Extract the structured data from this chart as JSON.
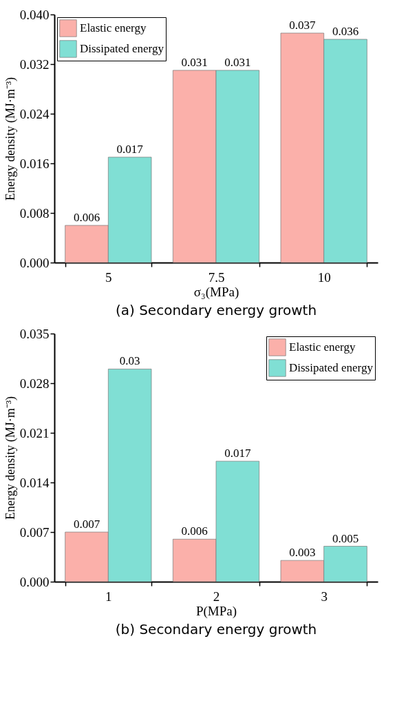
{
  "chart_data": [
    {
      "type": "bar",
      "title": "(a) Secondary energy growth",
      "xlabel": "σ₃(MPa)",
      "ylabel": "Energy density (MJ·m⁻³)",
      "categories": [
        "5",
        "7.5",
        "10"
      ],
      "series": [
        {
          "name": "Elastic energy",
          "color": "#fbb0aa",
          "values": [
            0.006,
            0.031,
            0.037
          ]
        },
        {
          "name": "Dissipated energy",
          "color": "#80dfd4",
          "values": [
            0.017,
            0.031,
            0.036
          ]
        }
      ],
      "ylim": [
        0,
        0.04
      ],
      "yticks": [
        {
          "value": 0,
          "label": "0.000"
        },
        {
          "value": 0.008,
          "label": "0.008"
        },
        {
          "value": 0.016,
          "label": "0.016"
        },
        {
          "value": 0.024,
          "label": "0.024"
        },
        {
          "value": 0.032,
          "label": "0.032"
        },
        {
          "value": 0.04,
          "label": "0.040"
        }
      ],
      "data_labels": true,
      "legend": "top left"
    },
    {
      "type": "bar",
      "title": "(b) Secondary energy growth",
      "xlabel": "P(MPa)",
      "ylabel": "Energy density (MJ·m⁻³)",
      "categories": [
        "1",
        "2",
        "3"
      ],
      "series": [
        {
          "name": "Elastic energy",
          "color": "#fbb0aa",
          "values": [
            0.007,
            0.006,
            0.003
          ]
        },
        {
          "name": "Dissipated energy",
          "color": "#80dfd4",
          "values": [
            0.03,
            0.017,
            0.005
          ]
        }
      ],
      "ylim": [
        0,
        0.035
      ],
      "yticks": [
        {
          "value": 0,
          "label": "0.000"
        },
        {
          "value": 0.007,
          "label": "0.007"
        },
        {
          "value": 0.014,
          "label": "0.014"
        },
        {
          "value": 0.021,
          "label": "0.021"
        },
        {
          "value": 0.028,
          "label": "0.028"
        },
        {
          "value": 0.035,
          "label": "0.035"
        }
      ],
      "data_labels": true,
      "legend": "top right"
    }
  ]
}
